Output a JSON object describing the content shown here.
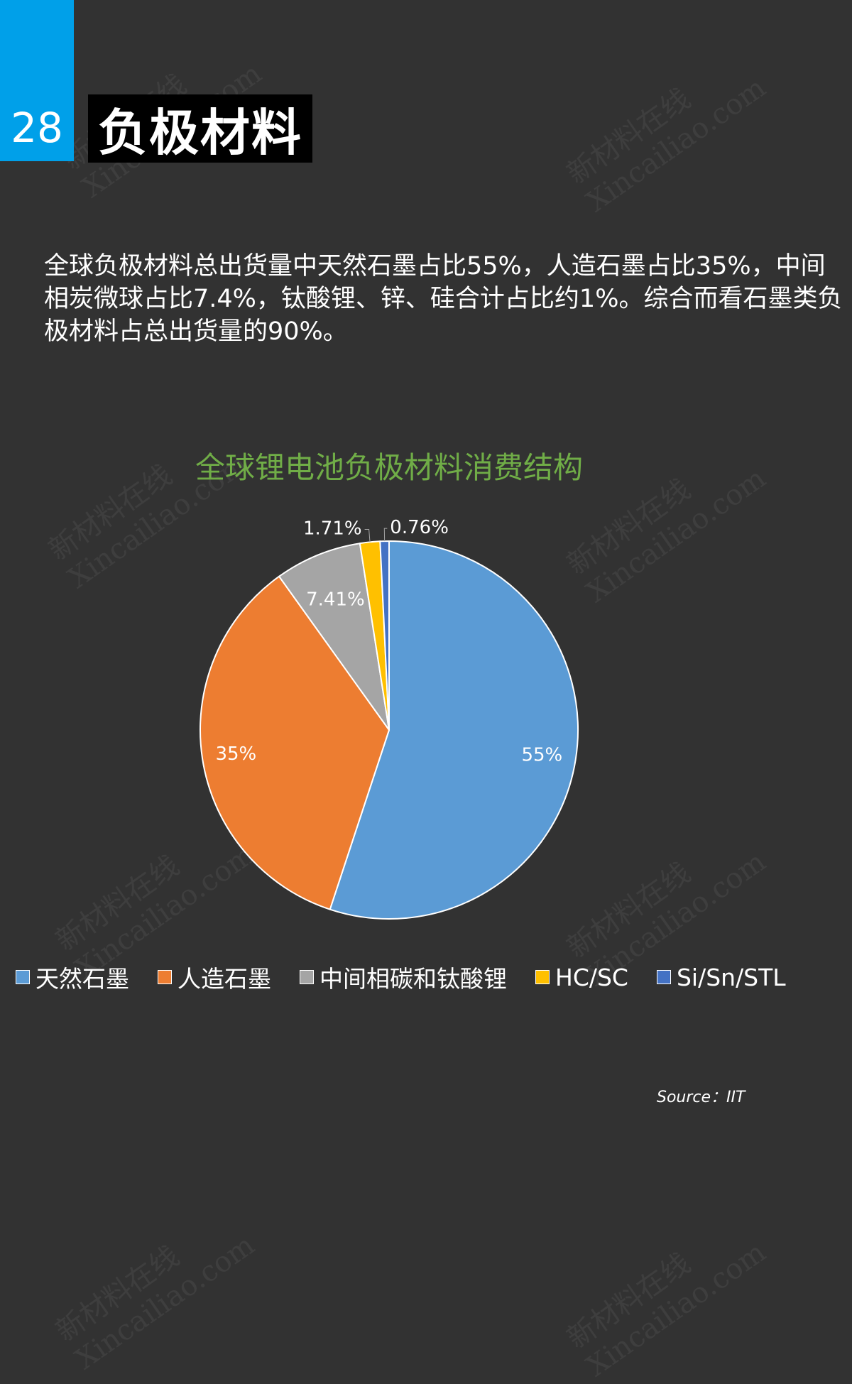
{
  "page_number": "28",
  "page_title": "负极材料",
  "description": "全球负极材料总出货量中天然石墨占比55%，人造石墨占比35%，中间相炭微球占比7.4%，钛酸锂、锌、硅合计占比约1%。综合而看石墨类负极材料占总出货量的90%。",
  "source": "Source：IIT",
  "watermark": {
    "line1": "新材料在线",
    "line2": "Xincailiao.com"
  },
  "colors": {
    "background": "#323232",
    "accent": "#00a0e9",
    "title_text": "#70ad47"
  },
  "chart_data": {
    "type": "pie",
    "title": "全球锂电池负极材料消费结构",
    "slices": [
      {
        "name": "天然石墨",
        "value": 55,
        "label": "55%",
        "color": "#5b9bd5"
      },
      {
        "name": "人造石墨",
        "value": 35,
        "label": "35%",
        "color": "#ed7d31"
      },
      {
        "name": "中间相碳和钛酸锂",
        "value": 7.41,
        "label": "7.41%",
        "color": "#a5a5a5"
      },
      {
        "name": "HC/SC",
        "value": 1.71,
        "label": "1.71%",
        "color": "#ffc000"
      },
      {
        "name": "Si/Sn/STL",
        "value": 0.76,
        "label": "0.76%",
        "color": "#4472c4"
      }
    ],
    "legend_position": "bottom"
  }
}
